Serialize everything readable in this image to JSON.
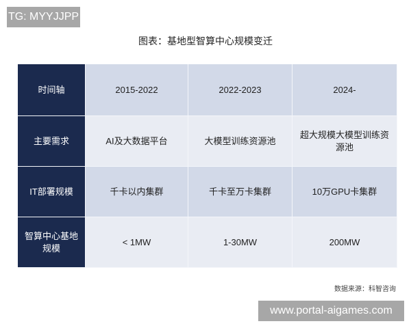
{
  "watermark_top": "TG: MYYJJPP",
  "watermark_bottom": "www.portal-aigames.com",
  "title": "图表：基地型智算中心规模变迁",
  "table": {
    "rows": [
      {
        "header": "时间轴",
        "cells": [
          "2015-2022",
          "2022-2023",
          "2024-"
        ]
      },
      {
        "header": "主要需求",
        "cells": [
          "AI及大数据平台",
          "大模型训练资源池",
          "超大规模大模型训练资源池"
        ]
      },
      {
        "header": "IT部署规模",
        "cells": [
          "千卡以内集群",
          "千卡至万卡集群",
          "10万GPU卡集群"
        ]
      },
      {
        "header": "智算中心基地规模",
        "cells": [
          "< 1MW",
          "1-30MW",
          "200MW"
        ]
      }
    ]
  },
  "source": "数据来源：科智咨询",
  "colors": {
    "header_bg": "#1b2a4e",
    "row_dark": "#d2d9e8",
    "row_light": "#e9ecf3"
  }
}
